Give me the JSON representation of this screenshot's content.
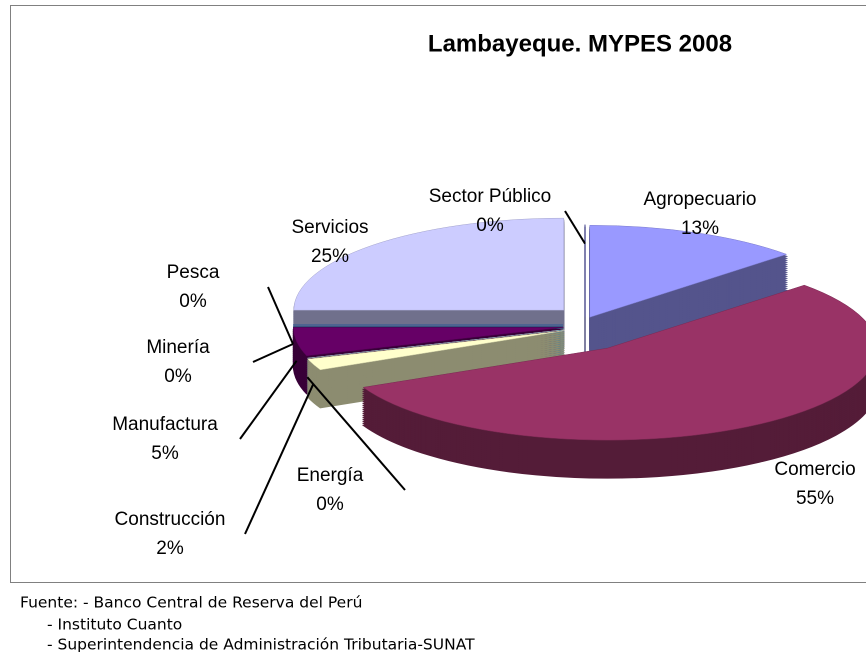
{
  "chart_data": {
    "type": "pie3d",
    "title": "Lambayeque. MYPES 2008",
    "categories": [
      "Agropecuario",
      "Comercio",
      "Construcción",
      "Energía",
      "Manufactura",
      "Minería",
      "Pesca",
      "Servicios",
      "Sector Público"
    ],
    "values": [
      13,
      55,
      2,
      0,
      5,
      0,
      0,
      25,
      0
    ],
    "value_labels": [
      "13%",
      "55%",
      "2%",
      "0%",
      "5%",
      "0%",
      "0%",
      "25%",
      "0%"
    ],
    "colors": [
      "#9999ff",
      "#993366",
      "#ffffcc",
      "#ccffff",
      "#660066",
      "#ff8080",
      "#0066cc",
      "#ccccff",
      "#000080"
    ],
    "source": [
      "Fuente: - Banco Central de Reserva del Perú",
      "- Instituto Cuanto",
      "- Superintendencia de Administración Tributaria-SUNAT"
    ]
  }
}
